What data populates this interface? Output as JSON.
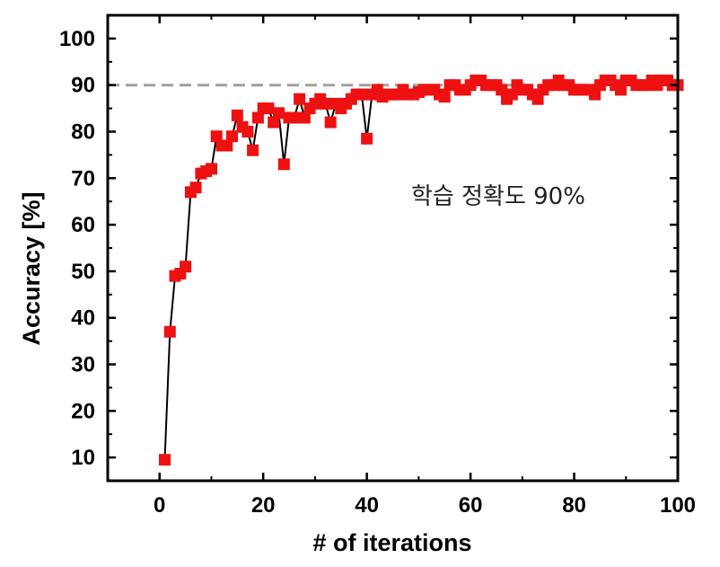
{
  "chart_data": {
    "type": "scatter",
    "xlabel": "# of iterations",
    "ylabel": "Accuracy [%]",
    "xlim": [
      -10,
      100
    ],
    "ylim": [
      5,
      105
    ],
    "xticks": [
      0,
      20,
      40,
      60,
      80,
      100
    ],
    "yticks": [
      10,
      20,
      30,
      40,
      50,
      60,
      70,
      80,
      90,
      100
    ],
    "xtick_labels": [
      "0",
      "20",
      "40",
      "60",
      "80",
      "100"
    ],
    "ytick_labels": [
      "10",
      "20",
      "30",
      "40",
      "50",
      "60",
      "70",
      "80",
      "90",
      "100"
    ],
    "reference_line": {
      "y": 90,
      "style": "dashed",
      "color": "#a0a0a0"
    },
    "annotation": "학습 정확도 90%",
    "grid": false,
    "colors": {
      "marker": "#ee1111",
      "line": "#000000",
      "axes": "#000000"
    },
    "series": [
      {
        "marker": "square",
        "connected": true,
        "x": [
          1,
          2,
          3,
          4,
          5,
          6,
          7,
          8,
          9,
          10,
          11,
          12,
          13,
          14,
          15,
          16,
          17,
          18,
          19,
          20,
          21,
          22,
          23,
          24,
          25,
          26,
          27,
          28,
          29,
          30,
          31,
          32,
          33,
          34,
          35,
          36,
          37,
          38,
          39,
          40,
          41,
          42,
          43,
          44,
          45,
          46,
          47,
          48,
          49,
          50,
          51,
          52,
          53,
          54,
          55,
          56,
          57,
          58,
          59,
          60,
          61,
          62,
          63,
          64,
          65,
          66,
          67,
          68,
          69,
          70,
          71,
          72,
          73,
          74,
          75,
          76,
          77,
          78,
          79,
          80,
          81,
          82,
          83,
          84,
          85,
          86,
          87,
          88,
          89,
          90,
          91,
          92,
          93,
          94,
          95,
          96,
          97,
          98,
          99,
          100
        ],
        "y": [
          9.5,
          37,
          49,
          49.5,
          51,
          67,
          68,
          71,
          71.5,
          72,
          79,
          77,
          77,
          79,
          83.5,
          81,
          80,
          76,
          83,
          85,
          85,
          82,
          84,
          73,
          83,
          83,
          87,
          83,
          85,
          86,
          87,
          86,
          82,
          86,
          85,
          86,
          87,
          88,
          88,
          78.5,
          88,
          89,
          87.5,
          88,
          88,
          88,
          89,
          88,
          88,
          88.5,
          89,
          89,
          89,
          88,
          87.5,
          90,
          90,
          89,
          89,
          90,
          91,
          91,
          90,
          90,
          90,
          89,
          87,
          88,
          90,
          89,
          89,
          88,
          87,
          89,
          90,
          90,
          91,
          90,
          90,
          89,
          89,
          89,
          89,
          88,
          90,
          91,
          91,
          90,
          89,
          91,
          91,
          90,
          90,
          90,
          91,
          90,
          91,
          91,
          90,
          90
        ]
      }
    ]
  }
}
